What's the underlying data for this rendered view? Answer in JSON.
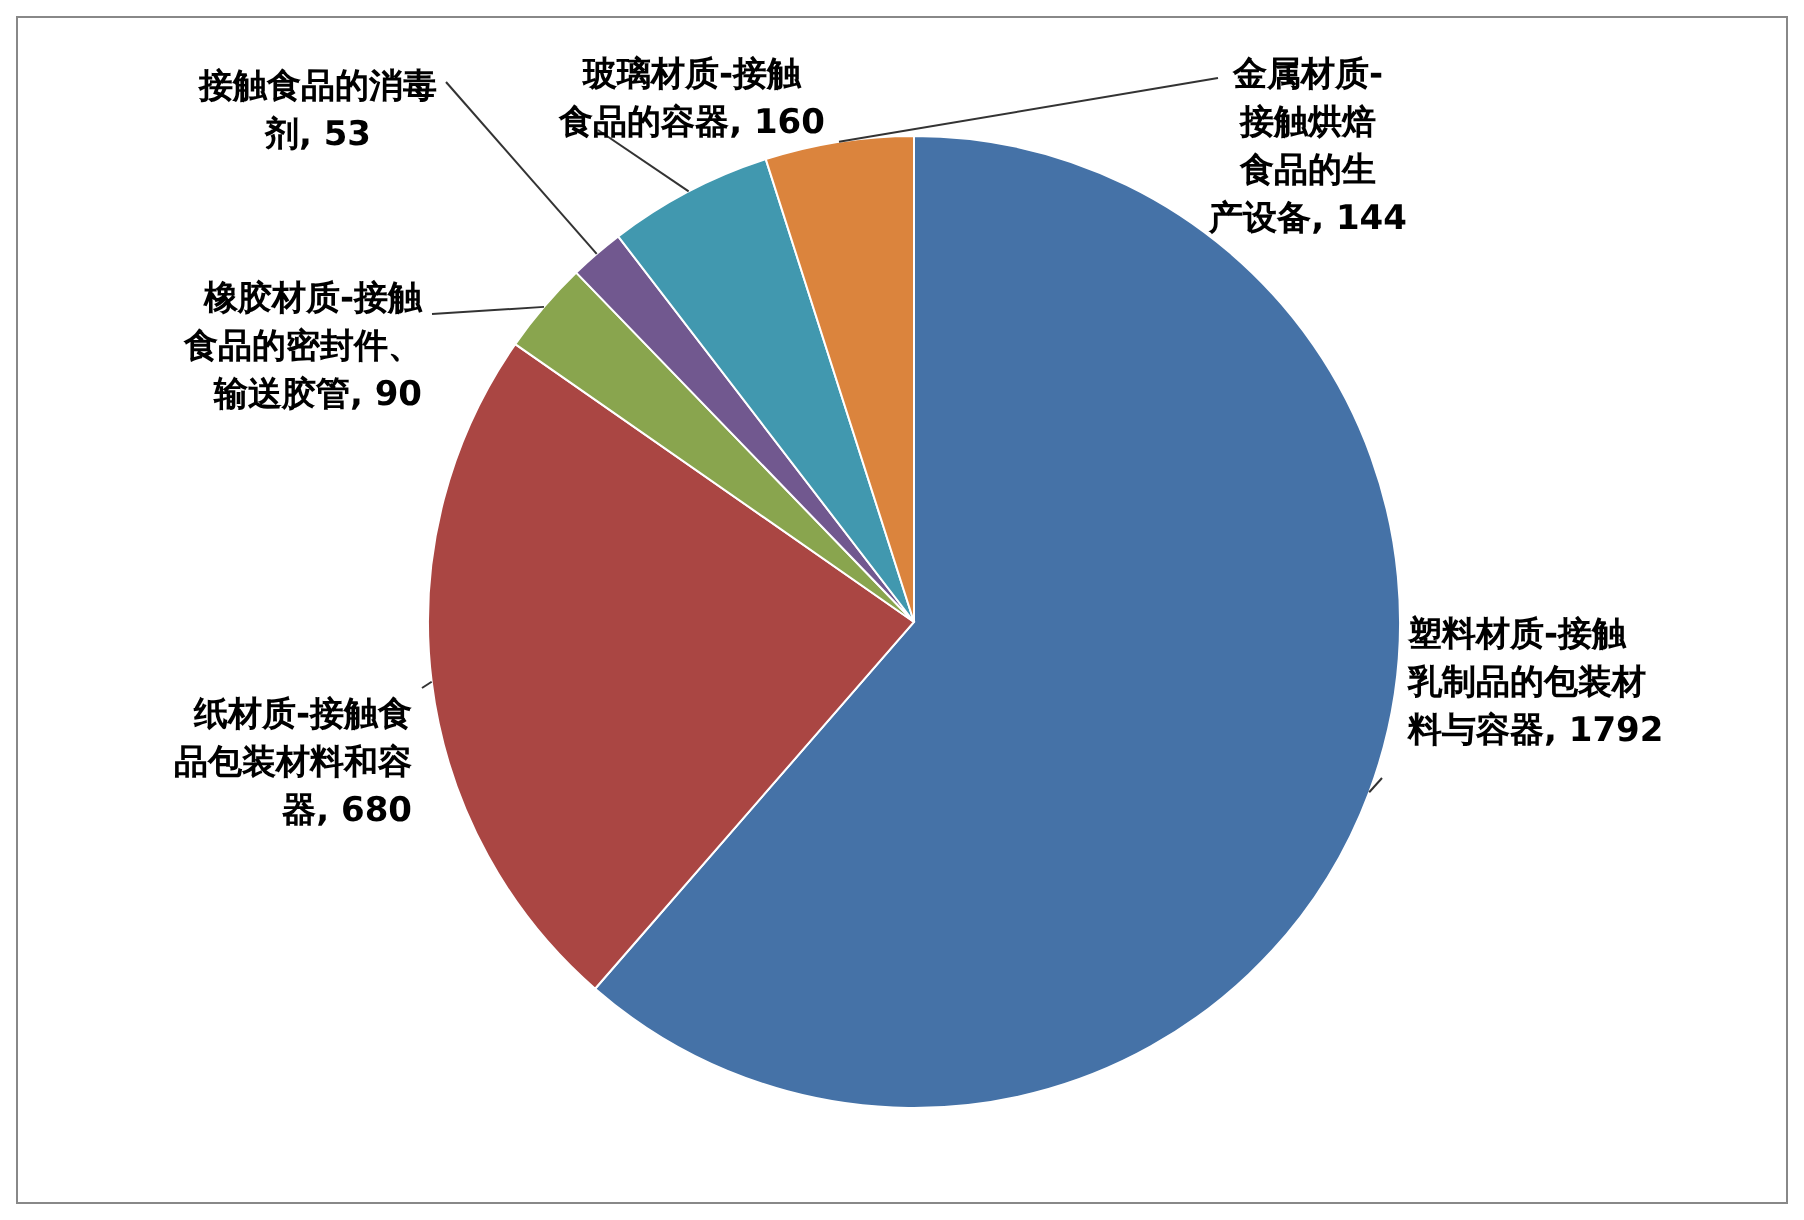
{
  "chart_data": {
    "type": "pie",
    "categories": [
      "塑料材质-接触乳制品的包装材料与容器",
      "纸材质-接触食品包装材料和容器",
      "橡胶材质-接触食品的密封件、输送胶管",
      "接触食品的消毒剂",
      "玻璃材质-接触食品的容器",
      "金属材质-接触烘焙食品的生产设备"
    ],
    "values": [
      1792,
      680,
      90,
      53,
      160,
      144
    ],
    "colors": [
      "#4572a7",
      "#aa4643",
      "#89a54e",
      "#71588f",
      "#4198af",
      "#db843d"
    ],
    "value_labels": [
      ", 1792",
      ", 680",
      ", 90",
      ", 53",
      ", 160",
      ", 144"
    ]
  }
}
